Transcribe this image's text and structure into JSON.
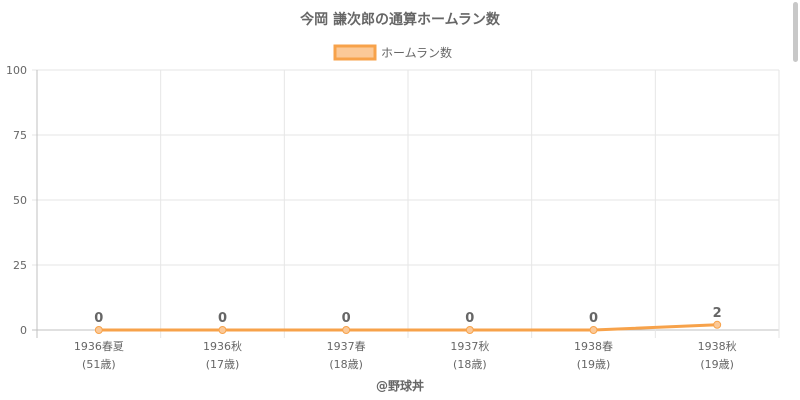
{
  "chart_data": {
    "type": "line",
    "title": "今岡 謙次郎の通算ホームラン数",
    "categories": [
      "1936春夏",
      "1936秋",
      "1937春",
      "1937秋",
      "1938春",
      "1938秋"
    ],
    "category_sublabels": [
      "(51歳)",
      "(17歳)",
      "(18歳)",
      "(18歳)",
      "(19歳)",
      "(19歳)"
    ],
    "series": [
      {
        "name": "ホームラン数",
        "values": [
          0,
          0,
          0,
          0,
          0,
          2
        ],
        "color": "#f7a24a",
        "fill": "#fbc998"
      }
    ],
    "ylim": [
      0,
      100
    ],
    "yticks": [
      "0",
      "25",
      "50",
      "75",
      "100"
    ],
    "data_labels": [
      "0",
      "0",
      "0",
      "0",
      "0",
      "2"
    ],
    "legend_position": "top",
    "grid": true
  },
  "footer": "@野球丼"
}
